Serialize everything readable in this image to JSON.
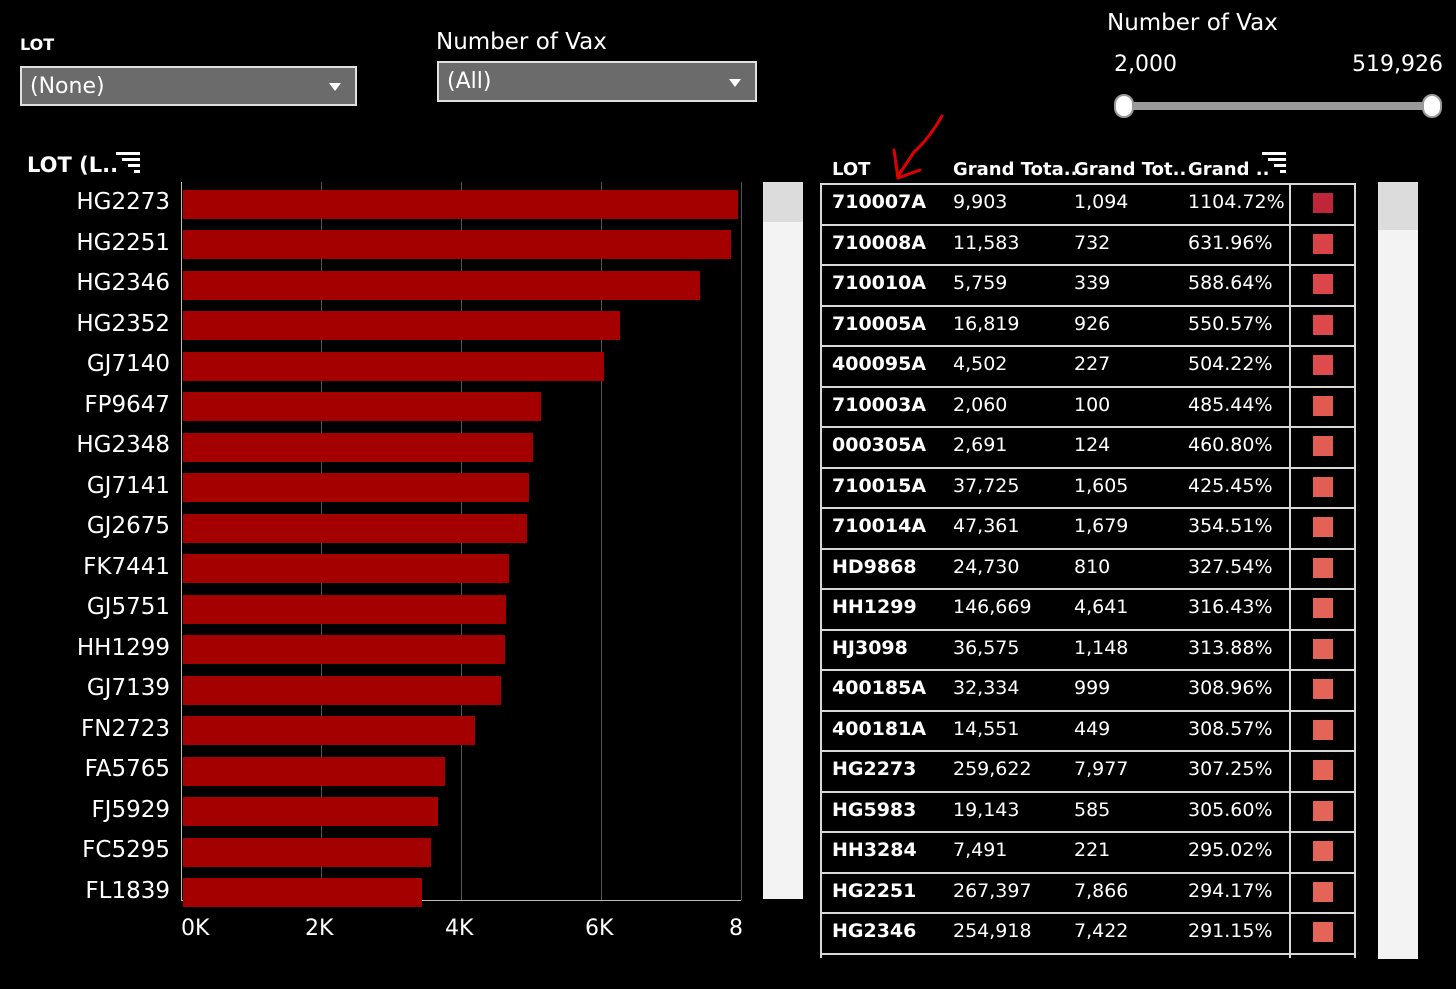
{
  "filters": {
    "lot_label": "LOT",
    "lot_value": "(None)",
    "vax_label": "Number of Vax",
    "vax_value": "(All)"
  },
  "range_slider": {
    "title": "Number of Vax",
    "min_label": "2,000",
    "max_label": "519,926",
    "min_value": 2000,
    "max_value": 519926
  },
  "bar_chart": {
    "header": "LOT (L..",
    "sort_icon": "sort-descending-icon",
    "bar_color": "#a50000"
  },
  "table": {
    "headers": [
      "LOT",
      "Grand Tota..",
      "Grand Tot..",
      "Grand .."
    ],
    "sort_icon": "sort-descending-icon",
    "rows": [
      {
        "lot": "710007A",
        "v1": "9,903",
        "v2": "1,094",
        "pct": "1104.72%",
        "color": "#c0263a"
      },
      {
        "lot": "710008A",
        "v1": "11,583",
        "v2": "732",
        "pct": "631.96%",
        "color": "#d94348"
      },
      {
        "lot": "710010A",
        "v1": "5,759",
        "v2": "339",
        "pct": "588.64%",
        "color": "#dc4549"
      },
      {
        "lot": "710005A",
        "v1": "16,819",
        "v2": "926",
        "pct": "550.57%",
        "color": "#dd484b"
      },
      {
        "lot": "400095A",
        "v1": "4,502",
        "v2": "227",
        "pct": "504.22%",
        "color": "#de4b4d"
      },
      {
        "lot": "710003A",
        "v1": "2,060",
        "v2": "100",
        "pct": "485.44%",
        "color": "#e05a50"
      },
      {
        "lot": "000305A",
        "v1": "2,691",
        "v2": "124",
        "pct": "460.80%",
        "color": "#e15c52"
      },
      {
        "lot": "710015A",
        "v1": "37,725",
        "v2": "1,605",
        "pct": "425.45%",
        "color": "#e25e53"
      },
      {
        "lot": "710014A",
        "v1": "47,361",
        "v2": "1,679",
        "pct": "354.51%",
        "color": "#e36155"
      },
      {
        "lot": "HD9868",
        "v1": "24,730",
        "v2": "810",
        "pct": "327.54%",
        "color": "#e36356"
      },
      {
        "lot": "HH1299",
        "v1": "146,669",
        "v2": "4,641",
        "pct": "316.43%",
        "color": "#e36357"
      },
      {
        "lot": "HJ3098",
        "v1": "36,575",
        "v2": "1,148",
        "pct": "313.88%",
        "color": "#e36357"
      },
      {
        "lot": "400185A",
        "v1": "32,334",
        "v2": "999",
        "pct": "308.96%",
        "color": "#e46457"
      },
      {
        "lot": "400181A",
        "v1": "14,551",
        "v2": "449",
        "pct": "308.57%",
        "color": "#e46457"
      },
      {
        "lot": "HG2273",
        "v1": "259,622",
        "v2": "7,977",
        "pct": "307.25%",
        "color": "#e46457"
      },
      {
        "lot": "HG5983",
        "v1": "19,143",
        "v2": "585",
        "pct": "305.60%",
        "color": "#e46457"
      },
      {
        "lot": "HH3284",
        "v1": "7,491",
        "v2": "221",
        "pct": "295.02%",
        "color": "#e46558"
      },
      {
        "lot": "HG2251",
        "v1": "267,397",
        "v2": "7,866",
        "pct": "294.17%",
        "color": "#e46558"
      },
      {
        "lot": "HG2346",
        "v1": "254,918",
        "v2": "7,422",
        "pct": "291.15%",
        "color": "#e46558"
      }
    ]
  },
  "annotation": {
    "arrow_color": "#e00000"
  },
  "chart_data": {
    "type": "bar",
    "orientation": "horizontal",
    "categories": [
      "HG2273",
      "HG2251",
      "HG2346",
      "HG2352",
      "GJ7140",
      "FP9647",
      "HG2348",
      "GJ7141",
      "GJ2675",
      "FK7441",
      "GJ5751",
      "HH1299",
      "GJ7139",
      "FN2723",
      "FA5765",
      "FJ5929",
      "FC5295",
      "FL1839"
    ],
    "values": [
      7977,
      7866,
      7422,
      6290,
      6050,
      5150,
      5040,
      4980,
      4950,
      4700,
      4650,
      4641,
      4590,
      4220,
      3780,
      3690,
      3580,
      3460
    ],
    "xlim": [
      0,
      8000
    ],
    "x_ticks": [
      "0K",
      "2K",
      "4K",
      "6K",
      "8"
    ],
    "x_tick_values": [
      0,
      2000,
      4000,
      6000,
      8000
    ],
    "grid": true,
    "color": "#a50000"
  }
}
